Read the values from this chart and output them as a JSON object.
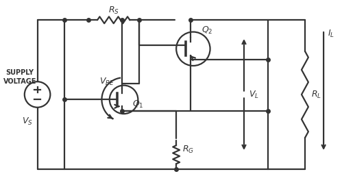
{
  "line_color": "#333333",
  "bg_color": "#ffffff",
  "lw": 1.6,
  "dot_r": 4.0,
  "fig_w": 4.99,
  "fig_h": 2.73,
  "dpi": 100,
  "xmax": 9.98,
  "ymax": 5.46
}
